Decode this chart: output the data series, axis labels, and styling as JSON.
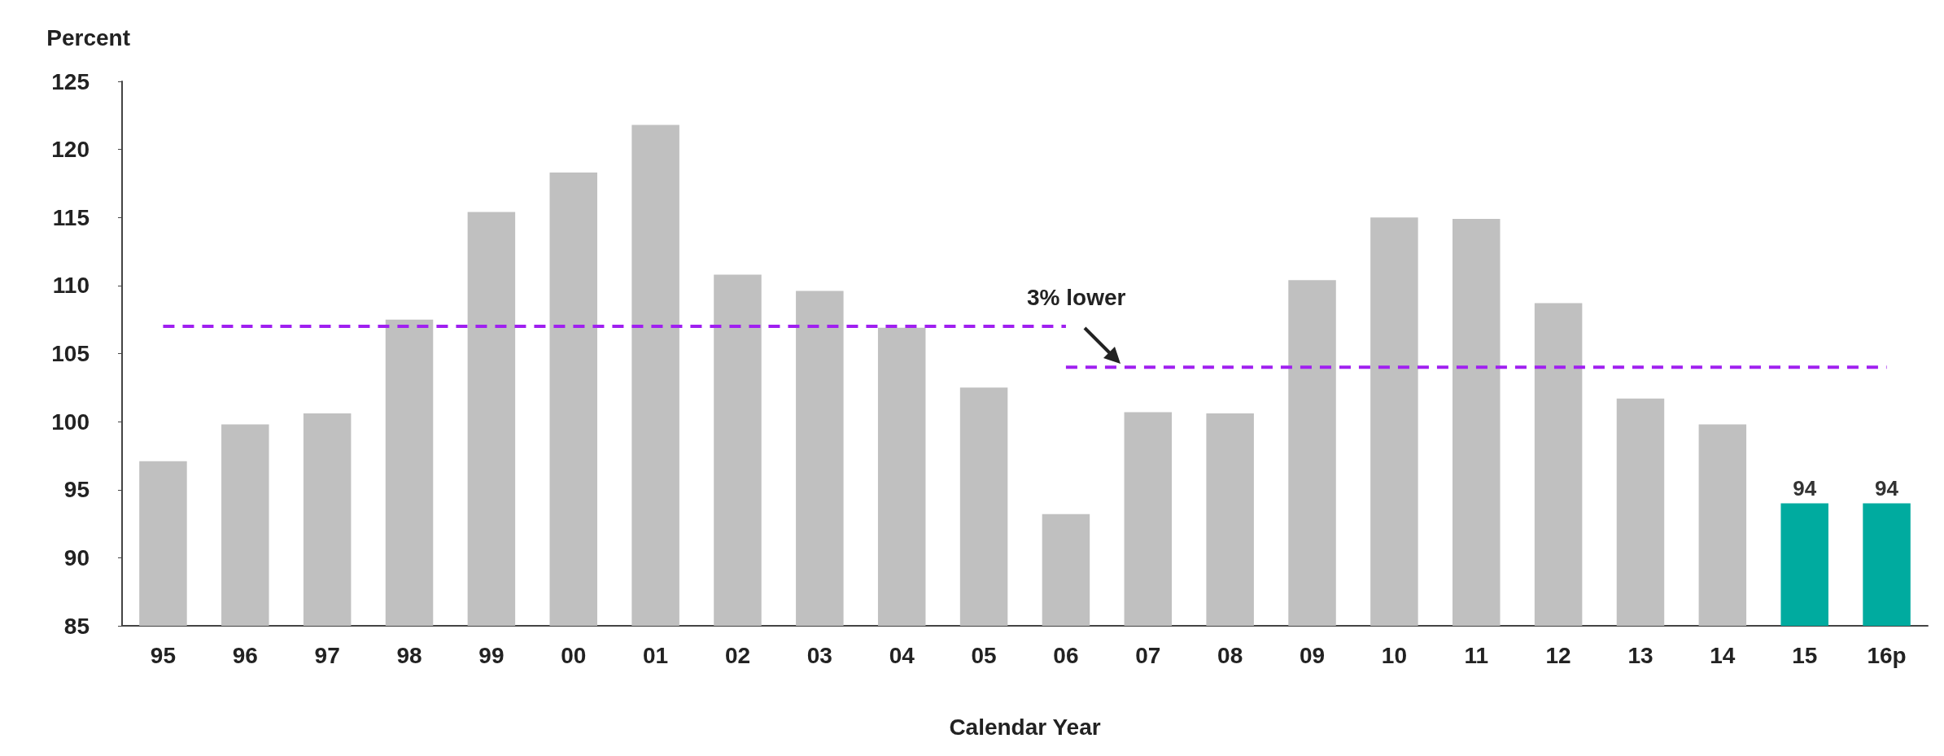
{
  "chart_data": {
    "type": "bar",
    "ylabel": "Percent",
    "xlabel": "Calendar Year",
    "categories": [
      "95",
      "96",
      "97",
      "98",
      "99",
      "00",
      "01",
      "02",
      "03",
      "04",
      "05",
      "06",
      "07",
      "08",
      "09",
      "10",
      "11",
      "12",
      "13",
      "14",
      "15",
      "16p"
    ],
    "series": [
      {
        "values": [
          97.1,
          99.8,
          100.6,
          107.5,
          115.4,
          118.3,
          121.8,
          110.8,
          109.6,
          106.9,
          102.5,
          93.2,
          100.7,
          100.6,
          110.4,
          115.0,
          114.9,
          108.7,
          101.7,
          99.8,
          94,
          94
        ],
        "colors": [
          "#c0c0c0",
          "#c0c0c0",
          "#c0c0c0",
          "#c0c0c0",
          "#c0c0c0",
          "#c0c0c0",
          "#c0c0c0",
          "#c0c0c0",
          "#c0c0c0",
          "#c0c0c0",
          "#c0c0c0",
          "#c0c0c0",
          "#c0c0c0",
          "#c0c0c0",
          "#c0c0c0",
          "#c0c0c0",
          "#c0c0c0",
          "#c0c0c0",
          "#c0c0c0",
          "#c0c0c0",
          "#00ab9f",
          "#00ab9f"
        ],
        "value_labels": [
          null,
          null,
          null,
          null,
          null,
          null,
          null,
          null,
          null,
          null,
          null,
          null,
          null,
          null,
          null,
          null,
          null,
          null,
          null,
          null,
          "94",
          "94"
        ]
      },
      {
        "type": "line",
        "x": [
          "95",
          "06"
        ],
        "values": [
          107,
          107
        ],
        "color": "#a020f0",
        "line_style": "dashed"
      },
      {
        "type": "line",
        "x": [
          "06",
          "16p"
        ],
        "values": [
          104,
          104
        ],
        "color": "#a020f0",
        "line_style": "dashed"
      }
    ],
    "annotations": [
      "3% lower"
    ],
    "ylim": [
      85,
      125
    ],
    "yticks": [
      85,
      90,
      95,
      100,
      105,
      110,
      115,
      120,
      125
    ],
    "grid": false,
    "marker": "none"
  }
}
